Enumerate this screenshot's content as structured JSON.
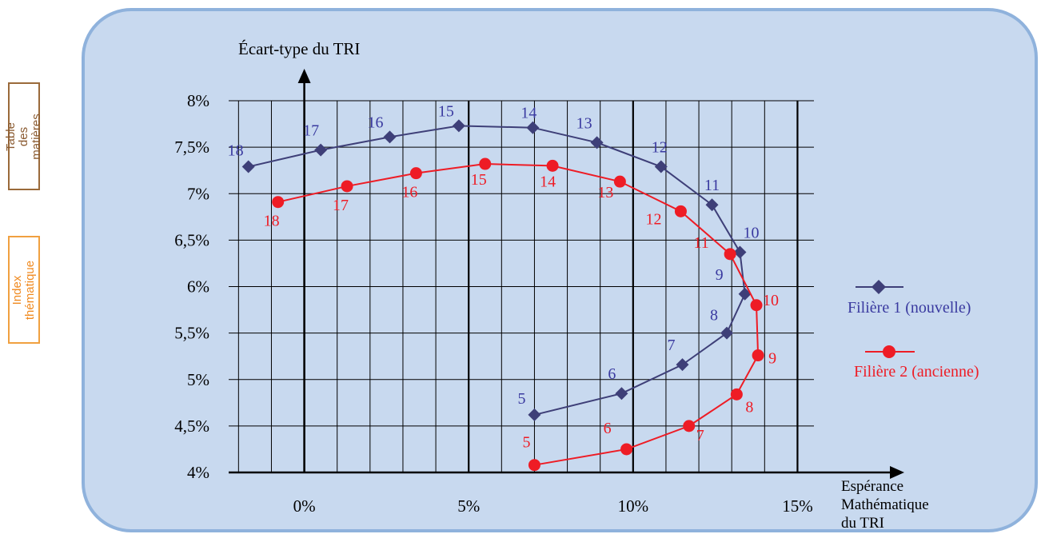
{
  "sidebar": {
    "toc_label": "Table des\nmatières",
    "index_label": "Index\nthématique"
  },
  "colors": {
    "panel": "#c8d9ef",
    "panel_border": "#8fb2dc",
    "series1": "#3e3f78",
    "series1_text": "#3a3aa0",
    "series2": "#ee1c25",
    "grid": "#000000"
  },
  "chart_data": {
    "type": "line",
    "title": "",
    "xlabel": "Espérance\nMathématique\ndu TRI",
    "ylabel": "Écart-type du TRI",
    "xlim": [
      -2.3,
      15.5
    ],
    "ylim": [
      4,
      8
    ],
    "x_ticks": [
      0,
      5,
      10,
      15
    ],
    "x_tick_labels": [
      "0%",
      "5%",
      "10%",
      "15%"
    ],
    "y_ticks": [
      4,
      4.5,
      5,
      5.5,
      6,
      6.5,
      7,
      7.5,
      8
    ],
    "y_tick_labels": [
      "4%",
      "4,5%",
      "5%",
      "5,5%",
      "6%",
      "6,5%",
      "7%",
      "7,5%",
      "8%"
    ],
    "grid": true,
    "legend_position": "right",
    "series": [
      {
        "name": "Filière 1 (nouvelle)",
        "marker": "diamond",
        "points": [
          {
            "label": "5",
            "x": 7.0,
            "y": 4.62
          },
          {
            "label": "6",
            "x": 9.65,
            "y": 4.85
          },
          {
            "label": "7",
            "x": 11.5,
            "y": 5.16
          },
          {
            "label": "8",
            "x": 12.85,
            "y": 5.5
          },
          {
            "label": "9",
            "x": 13.4,
            "y": 5.92
          },
          {
            "label": "10",
            "x": 13.25,
            "y": 6.37
          },
          {
            "label": "11",
            "x": 12.4,
            "y": 6.88
          },
          {
            "label": "12",
            "x": 10.85,
            "y": 7.29
          },
          {
            "label": "13",
            "x": 8.9,
            "y": 7.55
          },
          {
            "label": "14",
            "x": 6.95,
            "y": 7.71
          },
          {
            "label": "15",
            "x": 4.7,
            "y": 7.73
          },
          {
            "label": "16",
            "x": 2.6,
            "y": 7.61
          },
          {
            "label": "17",
            "x": 0.5,
            "y": 7.47
          },
          {
            "label": "18",
            "x": -1.7,
            "y": 7.29
          }
        ]
      },
      {
        "name": "Filière 2 (ancienne)",
        "marker": "circle",
        "points": [
          {
            "label": "5",
            "x": 7.0,
            "y": 4.08
          },
          {
            "label": "6",
            "x": 9.8,
            "y": 4.25
          },
          {
            "label": "7",
            "x": 11.7,
            "y": 4.5
          },
          {
            "label": "8",
            "x": 13.15,
            "y": 4.84
          },
          {
            "label": "9",
            "x": 13.8,
            "y": 5.26
          },
          {
            "label": "10",
            "x": 13.75,
            "y": 5.8
          },
          {
            "label": "11",
            "x": 12.95,
            "y": 6.35
          },
          {
            "label": "12",
            "x": 11.45,
            "y": 6.81
          },
          {
            "label": "13",
            "x": 9.6,
            "y": 7.13
          },
          {
            "label": "14",
            "x": 7.55,
            "y": 7.3
          },
          {
            "label": "15",
            "x": 5.5,
            "y": 7.32
          },
          {
            "label": "16",
            "x": 3.4,
            "y": 7.22
          },
          {
            "label": "17",
            "x": 1.3,
            "y": 7.08
          },
          {
            "label": "18",
            "x": -0.8,
            "y": 6.91
          }
        ]
      }
    ]
  }
}
